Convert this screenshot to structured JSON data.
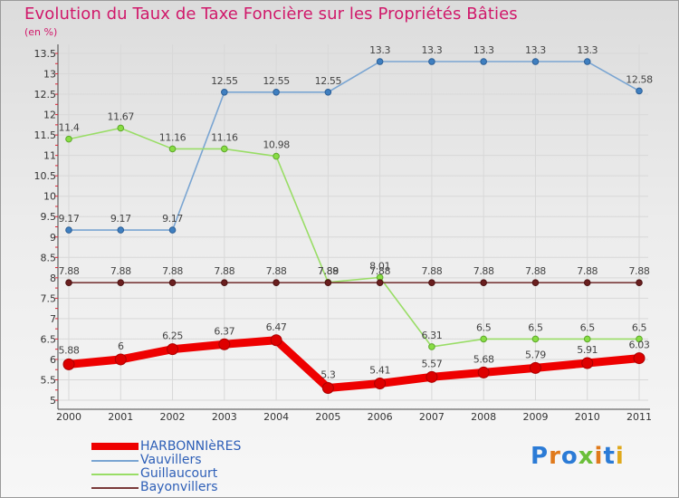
{
  "header": {
    "title": "Evolution du Taux de Taxe Foncière sur les Propriétés Bâties",
    "subtitle": "(en %)"
  },
  "brand": {
    "text": "Proxiti"
  },
  "chart_data": {
    "type": "line",
    "title": "Evolution du Taux de Taxe Foncière sur les Propriétés Bâties",
    "ylabel": "(en %)",
    "xlabel": "",
    "ylim": [
      5,
      13.5
    ],
    "grid": true,
    "legend_position": "bottom-left",
    "x": [
      "2000",
      "2001",
      "2002",
      "2003",
      "2004",
      "2005",
      "2006",
      "2007",
      "2008",
      "2009",
      "2010",
      "2011"
    ],
    "y_ticks": [
      "5",
      "5.5",
      "6",
      "6.5",
      "7",
      "7.5",
      "8",
      "8.5",
      "9",
      "9.5",
      "10",
      "10.5",
      "11",
      "11.5",
      "12",
      "12.5",
      "13",
      "13.5"
    ],
    "series": [
      {
        "name": "HARBONNIèRES",
        "color": "#ee0000",
        "values": [
          5.88,
          6,
          6.25,
          6.37,
          6.47,
          5.3,
          5.41,
          5.57,
          5.68,
          5.79,
          5.91,
          6.03
        ],
        "labels": [
          "5.88",
          "6",
          "6.25",
          "6.37",
          "6.47",
          "5.3",
          "5.41",
          "5.57",
          "5.68",
          "5.79",
          "5.91",
          "6.03"
        ]
      },
      {
        "name": "Vauvillers",
        "color": "#7aa5d2",
        "values": [
          9.17,
          9.17,
          9.17,
          12.55,
          12.55,
          12.55,
          13.3,
          13.3,
          13.3,
          13.3,
          13.3,
          12.58
        ],
        "labels": [
          "9.17",
          "9.17",
          "9.17",
          "12.55",
          "12.55",
          "12.55",
          "13.3",
          "13.3",
          "13.3",
          "13.3",
          "13.3",
          "12.58"
        ]
      },
      {
        "name": "Guillaucourt",
        "color": "#99dd66",
        "values": [
          11.4,
          11.67,
          11.16,
          11.16,
          10.98,
          7.89,
          8.01,
          6.31,
          6.5,
          6.5,
          6.5,
          6.5
        ],
        "labels": [
          "11.4",
          "11.67",
          "11.16",
          "11.16",
          "10.98",
          "7.89",
          "8.01",
          "6.31",
          "6.5",
          "6.5",
          "6.5",
          "6.5"
        ]
      },
      {
        "name": "Bayonvillers",
        "color": "#7a3a3a",
        "values": [
          7.88,
          7.88,
          7.88,
          7.88,
          7.88,
          7.88,
          7.88,
          7.88,
          7.88,
          7.88,
          7.88,
          7.88
        ],
        "labels": [
          "7.88",
          "7.88",
          "7.88",
          "7.88",
          "7.88",
          "7.88",
          "7.88",
          "7.88",
          "7.88",
          "7.88",
          "7.88",
          "7.88"
        ]
      }
    ]
  }
}
